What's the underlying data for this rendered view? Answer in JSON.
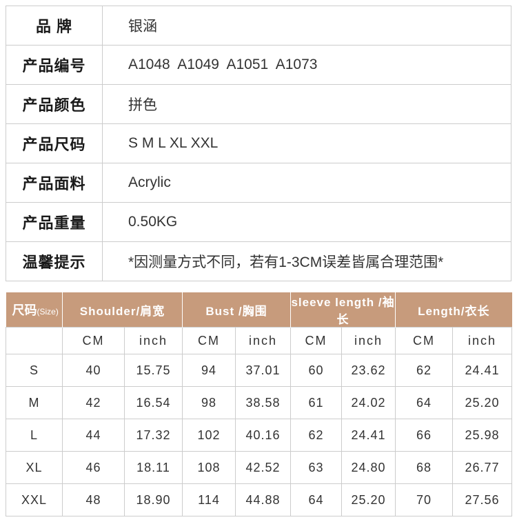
{
  "colors": {
    "size_header_bg": "#c79b7c",
    "size_header_text": "#ffffff",
    "table_border": "#cccccc",
    "body_text": "#333333"
  },
  "product_info": {
    "rows": [
      {
        "label": "品 牌",
        "value": "银涵"
      },
      {
        "label": "产品编号",
        "value": "A1048  A1049  A1051  A1073"
      },
      {
        "label": "产品颜色",
        "value": "拼色"
      },
      {
        "label": "产品尺码",
        "value": "S M L XL XXL"
      },
      {
        "label": "产品面料",
        "value": "Acrylic"
      },
      {
        "label": "产品重量",
        "value": "0.50KG"
      },
      {
        "label": "温馨提示",
        "value": "*因测量方式不同，若有1-3CM误差皆属合理范围*"
      }
    ]
  },
  "size_chart": {
    "size_label": "尺码",
    "size_label_sub": "(Size)",
    "groups": [
      {
        "label": "Shoulder/肩宽"
      },
      {
        "label": "Bust /胸围"
      },
      {
        "label": "sleeve length /袖长"
      },
      {
        "label": "Length/衣长"
      }
    ],
    "unit_headers": [
      "CM",
      "inch",
      "CM",
      "inch",
      "CM",
      "inch",
      "CM",
      "inch"
    ],
    "rows": [
      {
        "size": "S",
        "values": [
          "40",
          "15.75",
          "94",
          "37.01",
          "60",
          "23.62",
          "62",
          "24.41"
        ]
      },
      {
        "size": "M",
        "values": [
          "42",
          "16.54",
          "98",
          "38.58",
          "61",
          "24.02",
          "64",
          "25.20"
        ]
      },
      {
        "size": "L",
        "values": [
          "44",
          "17.32",
          "102",
          "40.16",
          "62",
          "24.41",
          "66",
          "25.98"
        ]
      },
      {
        "size": "XL",
        "values": [
          "46",
          "18.11",
          "108",
          "42.52",
          "63",
          "24.80",
          "68",
          "26.77"
        ]
      },
      {
        "size": "XXL",
        "values": [
          "48",
          "18.90",
          "114",
          "44.88",
          "64",
          "25.20",
          "70",
          "27.56"
        ]
      }
    ]
  }
}
